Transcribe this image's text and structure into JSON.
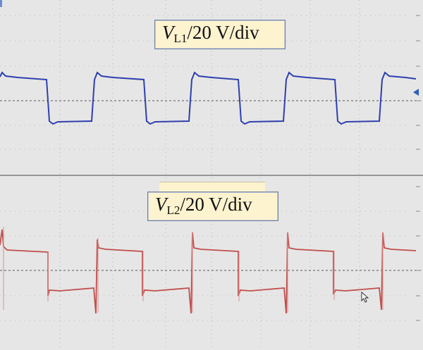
{
  "labels": {
    "ch1": {
      "var": "V",
      "sub": "L1",
      "scale": "/20 V/div"
    },
    "ch2": {
      "var": "V",
      "sub": "L2",
      "scale": "/20 V/div"
    }
  },
  "colors": {
    "background": "#e6e6e6",
    "grid": "#9a9a9a",
    "ch1_trace": "#2f3fae",
    "ch2_trace": "#c0504d",
    "label_fill": "#fdf3cf"
  },
  "icons": {
    "cursor": "mouse-pointer-icon",
    "marker": "channel-marker-icon"
  }
}
